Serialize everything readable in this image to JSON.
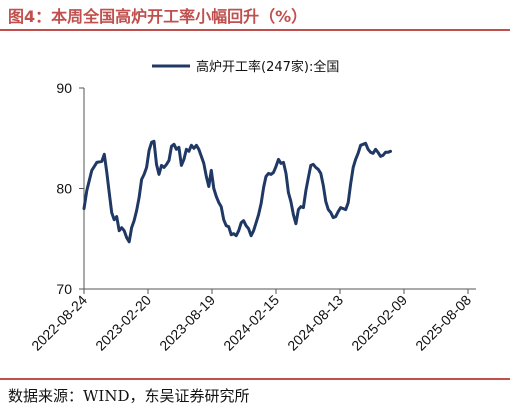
{
  "title": "图4：本周全国高炉开工率小幅回升（%）",
  "source": "数据来源：WIND，东吴证券研究所",
  "chart_data": {
    "type": "line",
    "title": "",
    "xlabel": "",
    "ylabel": "",
    "ylim": [
      70,
      90
    ],
    "yticks": [
      70,
      80,
      90
    ],
    "xticks": [
      "2022-08-24",
      "2023-02-20",
      "2023-08-19",
      "2024-02-15",
      "2024-08-13",
      "2025-02-09",
      "2025-08-08"
    ],
    "legend_position": "top-center",
    "grid": false,
    "series": [
      {
        "name": "高炉开工率(247家):全国",
        "color": "#203864",
        "points": [
          [
            "2022-08-24",
            78.0
          ],
          [
            "2022-09-01",
            79.8
          ],
          [
            "2022-09-15",
            81.8
          ],
          [
            "2022-09-29",
            82.6
          ],
          [
            "2022-10-13",
            82.7
          ],
          [
            "2022-10-20",
            83.4
          ],
          [
            "2022-10-27",
            81.6
          ],
          [
            "2022-11-03",
            79.6
          ],
          [
            "2022-11-10",
            77.6
          ],
          [
            "2022-11-17",
            76.9
          ],
          [
            "2022-11-24",
            77.2
          ],
          [
            "2022-12-01",
            75.8
          ],
          [
            "2022-12-08",
            76.1
          ],
          [
            "2022-12-15",
            75.8
          ],
          [
            "2022-12-22",
            75.1
          ],
          [
            "2022-12-29",
            74.7
          ],
          [
            "2023-01-05",
            76.1
          ],
          [
            "2023-01-12",
            76.8
          ],
          [
            "2023-01-19",
            77.8
          ],
          [
            "2023-01-26",
            79.1
          ],
          [
            "2023-02-02",
            80.9
          ],
          [
            "2023-02-09",
            81.4
          ],
          [
            "2023-02-16",
            82.1
          ],
          [
            "2023-02-23",
            83.8
          ],
          [
            "2023-03-02",
            84.6
          ],
          [
            "2023-03-09",
            84.7
          ],
          [
            "2023-03-16",
            82.4
          ],
          [
            "2023-03-23",
            81.4
          ],
          [
            "2023-03-30",
            82.3
          ],
          [
            "2023-04-06",
            82.1
          ],
          [
            "2023-04-13",
            82.4
          ],
          [
            "2023-04-20",
            82.8
          ],
          [
            "2023-04-27",
            84.2
          ],
          [
            "2023-05-04",
            84.4
          ],
          [
            "2023-05-11",
            83.9
          ],
          [
            "2023-05-18",
            84.1
          ],
          [
            "2023-05-25",
            82.3
          ],
          [
            "2023-06-01",
            82.9
          ],
          [
            "2023-06-08",
            83.9
          ],
          [
            "2023-06-15",
            83.7
          ],
          [
            "2023-06-22",
            84.3
          ],
          [
            "2023-06-29",
            84.0
          ],
          [
            "2023-07-06",
            84.3
          ],
          [
            "2023-07-13",
            83.9
          ],
          [
            "2023-07-20",
            83.2
          ],
          [
            "2023-07-27",
            82.5
          ],
          [
            "2023-08-03",
            81.2
          ],
          [
            "2023-08-10",
            80.2
          ],
          [
            "2023-08-17",
            81.8
          ],
          [
            "2023-08-24",
            80.0
          ],
          [
            "2023-08-31",
            79.2
          ],
          [
            "2023-09-07",
            78.6
          ],
          [
            "2023-09-14",
            78.2
          ],
          [
            "2023-09-21",
            76.9
          ],
          [
            "2023-09-28",
            76.3
          ],
          [
            "2023-10-05",
            76.2
          ],
          [
            "2023-10-12",
            75.4
          ],
          [
            "2023-10-19",
            75.5
          ],
          [
            "2023-10-26",
            75.3
          ],
          [
            "2023-11-02",
            75.8
          ],
          [
            "2023-11-09",
            76.6
          ],
          [
            "2023-11-16",
            76.8
          ],
          [
            "2023-11-23",
            76.3
          ],
          [
            "2023-11-30",
            76.0
          ],
          [
            "2023-12-07",
            75.3
          ],
          [
            "2023-12-14",
            75.8
          ],
          [
            "2023-12-21",
            76.6
          ],
          [
            "2023-12-28",
            77.4
          ],
          [
            "2024-01-04",
            78.5
          ],
          [
            "2024-01-11",
            80.1
          ],
          [
            "2024-01-18",
            81.2
          ],
          [
            "2024-01-25",
            81.5
          ],
          [
            "2024-02-01",
            81.4
          ],
          [
            "2024-02-08",
            81.6
          ],
          [
            "2024-02-15",
            82.2
          ],
          [
            "2024-02-22",
            82.9
          ],
          [
            "2024-02-29",
            82.5
          ],
          [
            "2024-03-07",
            82.6
          ],
          [
            "2024-03-14",
            81.5
          ],
          [
            "2024-03-21",
            79.6
          ],
          [
            "2024-03-28",
            78.7
          ],
          [
            "2024-04-04",
            77.4
          ],
          [
            "2024-04-11",
            76.5
          ],
          [
            "2024-04-18",
            77.9
          ],
          [
            "2024-04-25",
            78.2
          ],
          [
            "2024-05-02",
            78.1
          ],
          [
            "2024-05-09",
            79.8
          ],
          [
            "2024-05-16",
            81.1
          ],
          [
            "2024-05-23",
            82.3
          ],
          [
            "2024-05-30",
            82.4
          ],
          [
            "2024-06-06",
            82.1
          ],
          [
            "2024-06-13",
            81.9
          ],
          [
            "2024-06-20",
            81.5
          ],
          [
            "2024-06-27",
            80.3
          ],
          [
            "2024-07-04",
            78.7
          ],
          [
            "2024-07-11",
            77.9
          ],
          [
            "2024-07-18",
            77.6
          ],
          [
            "2024-07-25",
            77.1
          ],
          [
            "2024-08-01",
            77.2
          ],
          [
            "2024-08-08",
            77.7
          ],
          [
            "2024-08-15",
            78.1
          ],
          [
            "2024-08-22",
            78.0
          ],
          [
            "2024-08-29",
            77.9
          ],
          [
            "2024-09-05",
            78.6
          ],
          [
            "2024-09-12",
            80.5
          ],
          [
            "2024-09-19",
            82.1
          ],
          [
            "2024-09-26",
            82.9
          ],
          [
            "2024-10-03",
            83.5
          ],
          [
            "2024-10-10",
            84.3
          ],
          [
            "2024-10-17",
            84.4
          ],
          [
            "2024-10-24",
            84.5
          ],
          [
            "2024-10-31",
            83.9
          ],
          [
            "2024-11-07",
            83.6
          ],
          [
            "2024-11-14",
            83.5
          ],
          [
            "2024-11-21",
            83.9
          ],
          [
            "2024-11-28",
            83.6
          ],
          [
            "2024-12-05",
            83.2
          ],
          [
            "2024-12-12",
            83.3
          ],
          [
            "2024-12-19",
            83.6
          ],
          [
            "2024-12-26",
            83.6
          ],
          [
            "2025-01-02",
            83.7
          ]
        ]
      }
    ]
  }
}
